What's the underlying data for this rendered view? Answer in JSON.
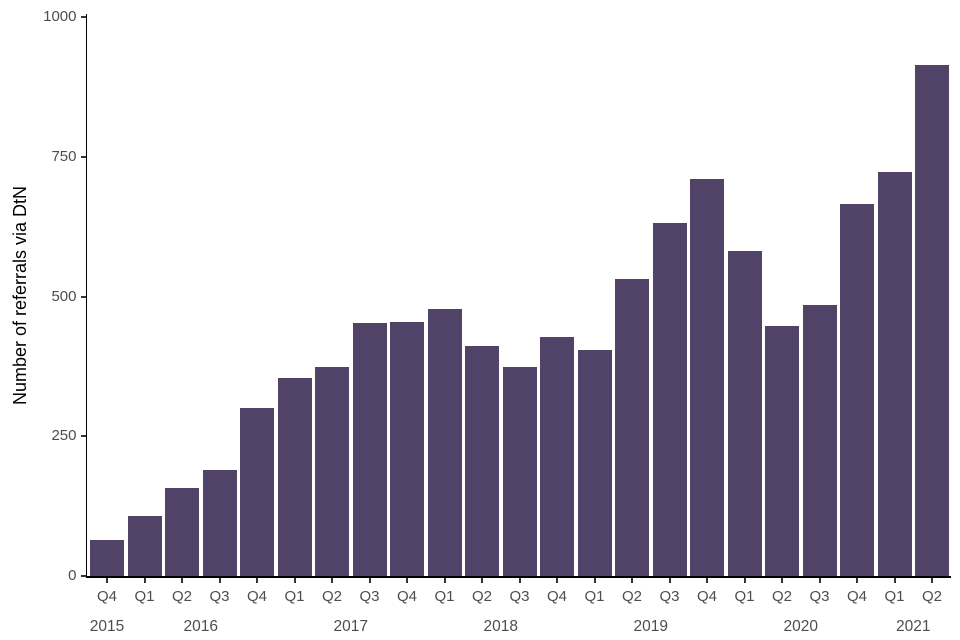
{
  "chart_data": {
    "type": "bar",
    "title": "",
    "xlabel": "",
    "ylabel": "Number of referrals via DtN",
    "ylim": [
      0,
      1000
    ],
    "yticks": [
      0,
      250,
      500,
      750,
      1000
    ],
    "grid": "off",
    "legend": "none",
    "categories": [
      "Q4",
      "Q1",
      "Q2",
      "Q3",
      "Q4",
      "Q1",
      "Q2",
      "Q3",
      "Q4",
      "Q1",
      "Q2",
      "Q3",
      "Q4",
      "Q1",
      "Q2",
      "Q3",
      "Q4",
      "Q1",
      "Q2",
      "Q3",
      "Q4",
      "Q1",
      "Q2"
    ],
    "values": [
      65,
      108,
      158,
      190,
      300,
      355,
      373,
      453,
      455,
      478,
      412,
      373,
      428,
      404,
      532,
      632,
      710,
      582,
      448,
      484,
      666,
      722,
      915
    ],
    "year_groups": [
      {
        "label": "2015",
        "count": 1
      },
      {
        "label": "2016",
        "count": 4
      },
      {
        "label": "2017",
        "count": 4
      },
      {
        "label": "2018",
        "count": 4
      },
      {
        "label": "2019",
        "count": 4
      },
      {
        "label": "2020",
        "count": 4
      },
      {
        "label": "2021",
        "count": 2
      }
    ],
    "colors": {
      "bar": "#514368",
      "axis_line": "#000000",
      "tick_mark": "#333333",
      "tick_label": "#4d4d4d",
      "axis_title": "#000000",
      "background": "#ffffff"
    }
  }
}
